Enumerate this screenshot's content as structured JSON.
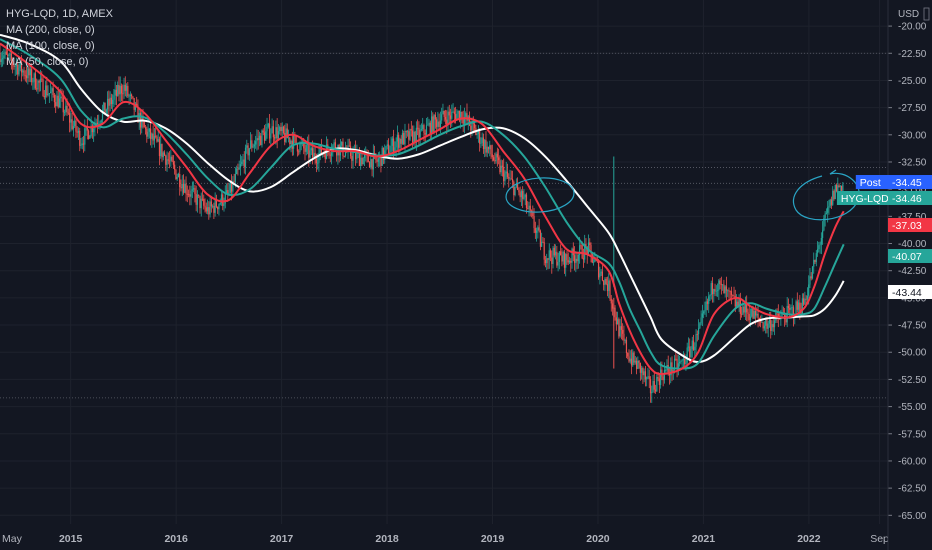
{
  "header": {
    "title": "HYG-LQD, 1D, AMEX",
    "indicators": [
      "MA (200, close, 0)",
      "MA (100, close, 0)",
      "MA (50, close, 0)"
    ]
  },
  "currency": "USD",
  "colors": {
    "background": "#131722",
    "candle_up": "#26a69a",
    "candle_down": "#ef5350",
    "ma200": "#ffffff",
    "ma100": "#26a69a",
    "ma50": "#f23645",
    "annotation": "#2aa4c4",
    "post_tag": "#2962ff"
  },
  "price_tags": [
    {
      "label": "Post",
      "value": "-34.45",
      "color": "#2962ff",
      "text_color": "#ffffff"
    },
    {
      "label": "HYG-LQD",
      "value": "-34.46",
      "color": "#26a69a",
      "text_color": "#ffffff"
    },
    {
      "label": "",
      "value": "-37.03",
      "color": "#f23645",
      "text_color": "#ffffff"
    },
    {
      "label": "",
      "value": "-40.07",
      "color": "#26a69a",
      "text_color": "#ffffff"
    },
    {
      "label": "",
      "value": "-43.44",
      "color": "#ffffff",
      "text_color": "#131722"
    }
  ],
  "chart_data": {
    "type": "line",
    "title": "HYG-LQD, 1D, AMEX",
    "y_axis_label": "USD",
    "y_ticks": [
      "-20.00",
      "-22.50",
      "-25.00",
      "-27.50",
      "-30.00",
      "-32.50",
      "-35.00",
      "-37.50",
      "-40.00",
      "-42.50",
      "-45.00",
      "-47.50",
      "-50.00",
      "-52.50",
      "-55.00",
      "-57.50",
      "-60.00",
      "-62.50",
      "-65.00"
    ],
    "x_ticks": [
      "May",
      "2015",
      "2016",
      "2017",
      "2018",
      "2019",
      "2020",
      "2021",
      "2022",
      "Sep"
    ],
    "ylim": [
      -65.8,
      -17.6
    ],
    "xlim": [
      2014.33,
      2022.75
    ],
    "x": [
      2014.33,
      2014.6,
      2014.9,
      2015.1,
      2015.3,
      2015.5,
      2015.7,
      2015.9,
      2016.1,
      2016.3,
      2016.5,
      2016.7,
      2016.9,
      2017.1,
      2017.3,
      2017.5,
      2017.7,
      2017.9,
      2018.1,
      2018.3,
      2018.5,
      2018.7,
      2018.9,
      2019.1,
      2019.3,
      2019.5,
      2019.7,
      2019.9,
      2020.1,
      2020.2,
      2020.3,
      2020.4,
      2020.5,
      2020.6,
      2020.8,
      2020.95,
      2021.1,
      2021.3,
      2021.45,
      2021.6,
      2021.8,
      2021.95,
      2022.05,
      2022.15,
      2022.25,
      2022.33
    ],
    "series": [
      {
        "name": "HYG-LQD",
        "values": [
          -22.5,
          -24.5,
          -27.0,
          -30.5,
          -28.0,
          -25.5,
          -29.5,
          -32.0,
          -35.0,
          -37.0,
          -35.5,
          -31.0,
          -29.5,
          -30.5,
          -32.0,
          -31.0,
          -32.0,
          -32.5,
          -30.5,
          -30.0,
          -28.5,
          -28.0,
          -30.5,
          -33.5,
          -36.0,
          -41.0,
          -41.5,
          -40.5,
          -44.0,
          -48.0,
          -50.5,
          -51.5,
          -53.5,
          -52.0,
          -51.0,
          -48.5,
          -43.5,
          -45.5,
          -46.5,
          -47.5,
          -46.5,
          -45.5,
          -42.0,
          -38.0,
          -35.0,
          -34.46
        ]
      },
      {
        "name": "MA (50, close, 0)",
        "values": [
          -21.6,
          -23.5,
          -26.0,
          -29.0,
          -29.0,
          -27.0,
          -28.0,
          -30.5,
          -33.0,
          -35.5,
          -36.0,
          -33.5,
          -31.0,
          -30.0,
          -31.0,
          -31.5,
          -31.5,
          -32.0,
          -31.5,
          -30.5,
          -29.5,
          -28.5,
          -29.0,
          -31.5,
          -34.0,
          -37.5,
          -40.5,
          -41.0,
          -42.5,
          -45.5,
          -48.0,
          -50.0,
          -51.5,
          -52.0,
          -51.5,
          -50.0,
          -46.5,
          -45.0,
          -45.8,
          -46.5,
          -46.8,
          -46.0,
          -44.0,
          -41.0,
          -38.5,
          -37.03
        ]
      },
      {
        "name": "MA (100, close, 0)",
        "values": [
          -21.2,
          -22.6,
          -24.8,
          -27.8,
          -29.3,
          -28.5,
          -28.4,
          -29.8,
          -31.8,
          -34.0,
          -35.5,
          -35.0,
          -33.0,
          -31.0,
          -30.8,
          -31.3,
          -31.6,
          -31.9,
          -31.8,
          -31.0,
          -30.0,
          -29.2,
          -28.8,
          -30.0,
          -32.0,
          -34.8,
          -38.0,
          -40.5,
          -41.8,
          -43.5,
          -46.0,
          -48.0,
          -50.0,
          -51.2,
          -51.5,
          -51.0,
          -48.5,
          -46.0,
          -45.5,
          -46.0,
          -46.5,
          -46.5,
          -46.0,
          -44.0,
          -41.8,
          -40.07
        ]
      },
      {
        "name": "MA (200, close, 0)",
        "values": [
          -20.8,
          -21.6,
          -23.2,
          -25.8,
          -27.9,
          -28.8,
          -28.7,
          -29.4,
          -30.8,
          -32.6,
          -34.2,
          -35.2,
          -34.8,
          -33.5,
          -32.2,
          -31.3,
          -31.4,
          -31.9,
          -32.2,
          -31.8,
          -31.0,
          -30.2,
          -29.5,
          -29.4,
          -30.3,
          -32.0,
          -34.2,
          -36.6,
          -39.0,
          -40.8,
          -42.8,
          -44.8,
          -46.8,
          -48.8,
          -50.3,
          -50.9,
          -50.3,
          -48.6,
          -47.4,
          -46.9,
          -46.8,
          -46.7,
          -46.6,
          -46.0,
          -44.8,
          -43.44
        ]
      }
    ],
    "grid": true,
    "legend": "top-left"
  }
}
